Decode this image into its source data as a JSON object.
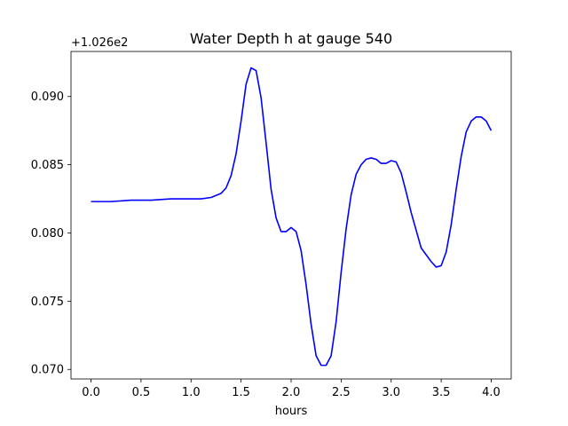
{
  "chart_data": {
    "type": "line",
    "title": "Water Depth h at gauge 540",
    "xlabel": "hours",
    "ylabel": "",
    "y_offset_label": "+1.026e2",
    "xlim": [
      -0.2,
      4.2
    ],
    "ylim": [
      0.0693,
      0.0933
    ],
    "x_ticks": [
      0.0,
      0.5,
      1.0,
      1.5,
      2.0,
      2.5,
      3.0,
      3.5,
      4.0
    ],
    "x_tick_labels": [
      "0.0",
      "0.5",
      "1.0",
      "1.5",
      "2.0",
      "2.5",
      "3.0",
      "3.5",
      "4.0"
    ],
    "y_ticks": [
      0.07,
      0.075,
      0.08,
      0.085,
      0.09
    ],
    "y_tick_labels": [
      "0.070",
      "0.075",
      "0.080",
      "0.085",
      "0.090"
    ],
    "grid": false,
    "legend": "none",
    "series": [
      {
        "color": "#0000ff",
        "x": [
          0.0,
          0.2,
          0.4,
          0.6,
          0.8,
          1.0,
          1.1,
          1.2,
          1.3,
          1.35,
          1.4,
          1.45,
          1.5,
          1.55,
          1.6,
          1.65,
          1.7,
          1.75,
          1.8,
          1.85,
          1.9,
          1.95,
          2.0,
          2.05,
          2.1,
          2.15,
          2.2,
          2.25,
          2.3,
          2.35,
          2.4,
          2.45,
          2.5,
          2.55,
          2.6,
          2.65,
          2.7,
          2.75,
          2.8,
          2.85,
          2.9,
          2.95,
          3.0,
          3.05,
          3.1,
          3.15,
          3.2,
          3.3,
          3.4,
          3.45,
          3.5,
          3.55,
          3.6,
          3.65,
          3.7,
          3.75,
          3.8,
          3.85,
          3.9,
          3.95,
          4.0
        ],
        "y": [
          0.0823,
          0.0823,
          0.0824,
          0.0824,
          0.0825,
          0.0825,
          0.0825,
          0.0826,
          0.0829,
          0.0833,
          0.0842,
          0.0858,
          0.0882,
          0.0909,
          0.0921,
          0.0919,
          0.0899,
          0.0866,
          0.0832,
          0.0811,
          0.0801,
          0.0801,
          0.0804,
          0.0801,
          0.0787,
          0.0762,
          0.0733,
          0.071,
          0.0703,
          0.0703,
          0.071,
          0.0735,
          0.0771,
          0.0803,
          0.0828,
          0.0843,
          0.085,
          0.0854,
          0.0855,
          0.0854,
          0.0851,
          0.0851,
          0.0853,
          0.0852,
          0.0844,
          0.083,
          0.0815,
          0.0789,
          0.0779,
          0.0775,
          0.0776,
          0.0786,
          0.0806,
          0.0832,
          0.0856,
          0.0874,
          0.0882,
          0.0885,
          0.0885,
          0.0882,
          0.0875
        ]
      }
    ]
  }
}
